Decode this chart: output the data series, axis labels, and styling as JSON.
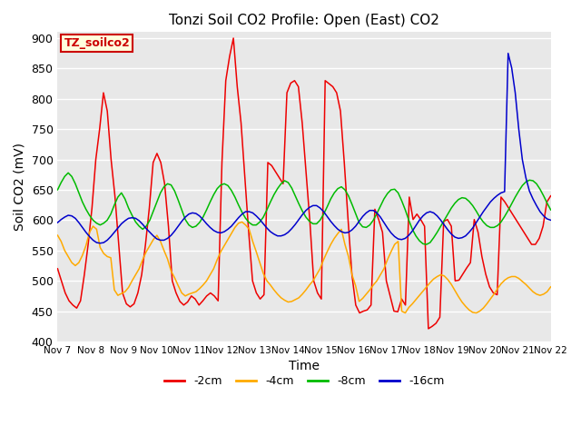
{
  "title": "Tonzi Soil CO2 Profile: Open (East) CO2",
  "xlabel": "Time",
  "ylabel": "Soil CO2 (mV)",
  "ylim": [
    400,
    910
  ],
  "yticks": [
    400,
    450,
    500,
    550,
    600,
    650,
    700,
    750,
    800,
    850,
    900
  ],
  "bg_color": "#e8e8e8",
  "fig_color": "#ffffff",
  "annotation_text": "TZ_soilco2",
  "annotation_bg": "#ffffdd",
  "annotation_border": "#cc0000",
  "legend_labels": [
    "-2cm",
    "-4cm",
    "-8cm",
    "-16cm"
  ],
  "line_colors": [
    "#ee0000",
    "#ffaa00",
    "#00bb00",
    "#0000cc"
  ],
  "line_width": 1.1,
  "x_tick_labels": [
    "Nov 7",
    "Nov 8",
    "Nov 9",
    "Nov 10",
    "Nov 11",
    "Nov 12",
    "Nov 13",
    "Nov 14",
    "Nov 15",
    "Nov 16",
    "Nov 17",
    "Nov 18",
    "Nov 19",
    "Nov 20",
    "Nov 21",
    "Nov 22"
  ],
  "series_2cm": [
    520,
    500,
    480,
    467,
    460,
    455,
    467,
    510,
    560,
    620,
    700,
    750,
    810,
    780,
    700,
    640,
    560,
    480,
    462,
    457,
    462,
    480,
    510,
    560,
    620,
    695,
    710,
    695,
    660,
    590,
    500,
    480,
    466,
    460,
    465,
    475,
    470,
    460,
    467,
    475,
    480,
    475,
    467,
    695,
    830,
    870,
    900,
    820,
    760,
    670,
    580,
    500,
    480,
    470,
    477,
    695,
    690,
    680,
    670,
    660,
    810,
    826,
    830,
    820,
    760,
    680,
    598,
    500,
    480,
    470,
    830,
    825,
    820,
    810,
    780,
    695,
    600,
    510,
    460,
    447,
    450,
    452,
    460,
    618,
    601,
    580,
    500,
    475,
    450,
    449,
    470,
    460,
    638,
    601,
    610,
    601,
    590,
    421,
    425,
    430,
    440,
    598,
    601,
    590,
    500,
    501,
    511,
    521,
    530,
    601,
    580,
    540,
    511,
    490,
    480,
    477,
    638,
    630,
    620,
    610,
    600,
    590,
    580,
    570,
    560,
    560,
    570,
    590,
    630,
    640
  ],
  "series_4cm": [
    575,
    565,
    550,
    540,
    530,
    525,
    530,
    542,
    558,
    580,
    590,
    585,
    555,
    545,
    540,
    538,
    485,
    476,
    479,
    482,
    489,
    500,
    510,
    520,
    535,
    548,
    558,
    568,
    575,
    565,
    550,
    536,
    516,
    505,
    492,
    480,
    475,
    478,
    480,
    482,
    487,
    493,
    500,
    510,
    520,
    535,
    548,
    558,
    568,
    578,
    588,
    595,
    597,
    592,
    585,
    565,
    548,
    530,
    512,
    500,
    493,
    485,
    478,
    472,
    468,
    465,
    466,
    469,
    472,
    478,
    485,
    493,
    500,
    510,
    520,
    535,
    548,
    560,
    570,
    578,
    585,
    560,
    540,
    510,
    492,
    466,
    471,
    478,
    485,
    493,
    500,
    510,
    520,
    535,
    548,
    560,
    565,
    450,
    447,
    456,
    462,
    469,
    476,
    483,
    490,
    497,
    503,
    507,
    510,
    508,
    502,
    494,
    484,
    474,
    465,
    458,
    452,
    448,
    447,
    450,
    455,
    462,
    470,
    478,
    487,
    495,
    501,
    505,
    507,
    507,
    504,
    499,
    494,
    488,
    482,
    478,
    476,
    478,
    482,
    490
  ],
  "series_8cm": [
    650,
    662,
    672,
    678,
    672,
    660,
    645,
    630,
    618,
    608,
    600,
    595,
    592,
    595,
    600,
    610,
    625,
    638,
    645,
    635,
    620,
    608,
    597,
    590,
    585,
    590,
    600,
    615,
    630,
    645,
    655,
    660,
    658,
    648,
    633,
    617,
    601,
    592,
    588,
    590,
    596,
    605,
    617,
    630,
    642,
    652,
    658,
    660,
    657,
    649,
    638,
    625,
    613,
    603,
    596,
    592,
    592,
    597,
    605,
    617,
    630,
    642,
    652,
    660,
    665,
    662,
    653,
    640,
    627,
    615,
    605,
    598,
    594,
    594,
    600,
    610,
    622,
    635,
    645,
    652,
    655,
    650,
    640,
    626,
    611,
    596,
    589,
    588,
    592,
    600,
    611,
    623,
    635,
    644,
    650,
    651,
    645,
    632,
    617,
    600,
    585,
    574,
    566,
    561,
    560,
    563,
    571,
    580,
    590,
    600,
    610,
    620,
    628,
    634,
    637,
    636,
    631,
    624,
    615,
    605,
    597,
    591,
    588,
    588,
    591,
    597,
    606,
    616,
    627,
    638,
    648,
    657,
    663,
    666,
    665,
    660,
    651,
    640,
    628,
    617
  ],
  "series_16cm": [
    596,
    601,
    605,
    608,
    607,
    603,
    596,
    588,
    580,
    573,
    567,
    563,
    562,
    563,
    567,
    573,
    580,
    587,
    594,
    599,
    603,
    604,
    603,
    599,
    593,
    586,
    580,
    574,
    569,
    567,
    567,
    570,
    575,
    582,
    590,
    598,
    605,
    610,
    612,
    611,
    607,
    601,
    594,
    588,
    583,
    580,
    579,
    581,
    585,
    590,
    597,
    604,
    610,
    614,
    614,
    612,
    607,
    601,
    594,
    587,
    581,
    577,
    574,
    574,
    576,
    580,
    586,
    593,
    601,
    609,
    616,
    621,
    624,
    624,
    620,
    614,
    606,
    598,
    591,
    585,
    581,
    579,
    580,
    584,
    590,
    598,
    606,
    612,
    616,
    616,
    612,
    605,
    596,
    587,
    579,
    573,
    569,
    568,
    570,
    575,
    582,
    591,
    600,
    607,
    612,
    614,
    612,
    607,
    600,
    592,
    584,
    577,
    572,
    570,
    571,
    574,
    580,
    587,
    596,
    605,
    614,
    622,
    630,
    636,
    641,
    645,
    647,
    875,
    851,
    810,
    750,
    700,
    670,
    648,
    635,
    624,
    614,
    607,
    602,
    600
  ]
}
